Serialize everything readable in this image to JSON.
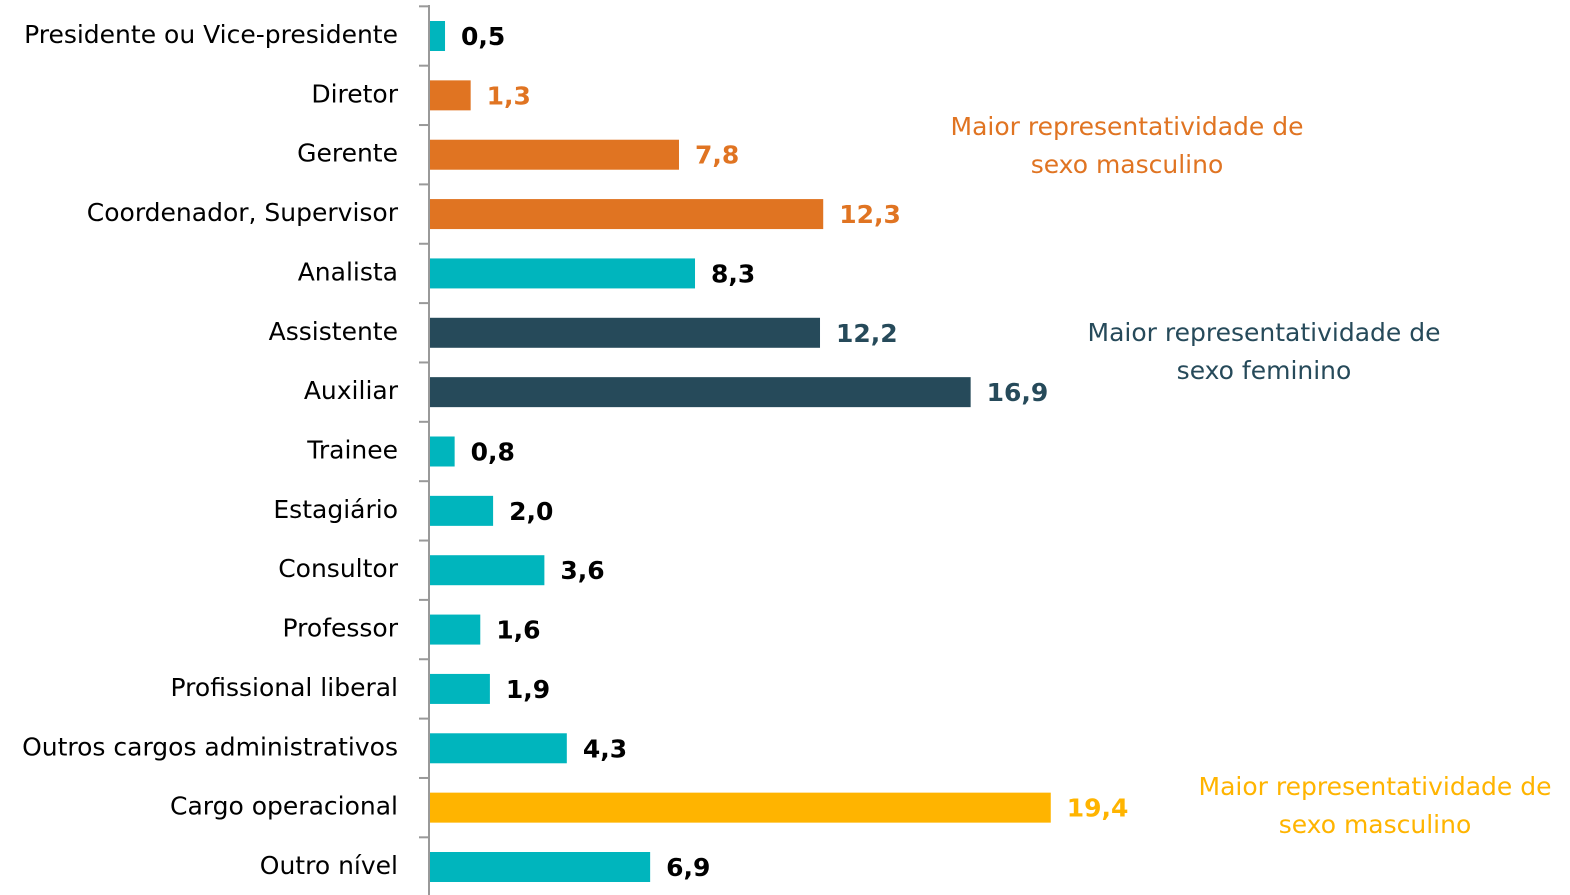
{
  "chart_data": {
    "type": "bar",
    "orientation": "horizontal",
    "categories": [
      "Presidente ou Vice-presidente",
      "Diretor",
      "Gerente",
      "Coordenador, Supervisor",
      "Analista",
      "Assistente",
      "Auxiliar",
      "Trainee",
      "Estagiário",
      "Consultor",
      "Professor",
      "Profissional liberal",
      "Outros cargos administrativos",
      "Cargo operacional",
      "Outro nível"
    ],
    "values": [
      0.5,
      1.3,
      7.8,
      12.3,
      8.3,
      12.2,
      16.9,
      0.8,
      2.0,
      3.6,
      1.6,
      1.9,
      4.3,
      19.4,
      6.9
    ],
    "value_labels": [
      "0,5",
      "1,3",
      "7,8",
      "12,3",
      "8,3",
      "12,2",
      "16,9",
      "0,8",
      "2,0",
      "3,6",
      "1,6",
      "1,9",
      "4,3",
      "19,4",
      "6,9"
    ],
    "colors": [
      "#00b5bd",
      "#e07422",
      "#e07422",
      "#e07422",
      "#00b5bd",
      "#264a5a",
      "#264a5a",
      "#00b5bd",
      "#00b5bd",
      "#00b5bd",
      "#00b5bd",
      "#00b5bd",
      "#00b5bd",
      "#ffb400",
      "#00b5bd"
    ],
    "label_colors": [
      "#000000",
      "#e07422",
      "#e07422",
      "#e07422",
      "#000000",
      "#264a5a",
      "#264a5a",
      "#000000",
      "#000000",
      "#000000",
      "#000000",
      "#000000",
      "#000000",
      "#ffb400",
      "#000000"
    ],
    "xlim": [
      0,
      20
    ],
    "annotations": [
      {
        "lines": [
          "Maior representatividade de",
          "sexo masculino"
        ],
        "color": "#e07422"
      },
      {
        "lines": [
          "Maior representatividade de",
          "sexo feminino"
        ],
        "color": "#264a5a"
      },
      {
        "lines": [
          "Maior representatividade de",
          "sexo masculino"
        ],
        "color": "#ffb400"
      }
    ]
  }
}
